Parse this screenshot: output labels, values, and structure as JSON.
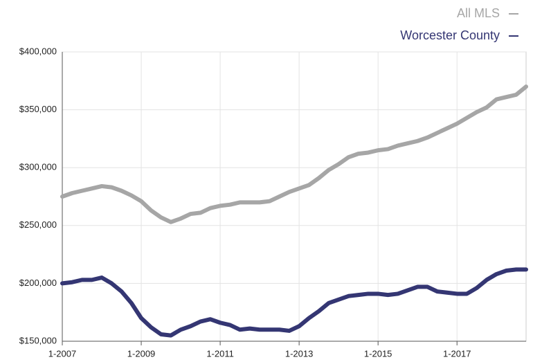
{
  "chart_data": {
    "type": "line",
    "x": [
      2007,
      2007.25,
      2007.5,
      2007.75,
      2008,
      2008.25,
      2008.5,
      2008.75,
      2009,
      2009.25,
      2009.5,
      2009.75,
      2010,
      2010.25,
      2010.5,
      2010.75,
      2011,
      2011.25,
      2011.5,
      2011.75,
      2012,
      2012.25,
      2012.5,
      2012.75,
      2013,
      2013.25,
      2013.5,
      2013.75,
      2014,
      2014.25,
      2014.5,
      2014.75,
      2015,
      2015.25,
      2015.5,
      2015.75,
      2016,
      2016.25,
      2016.5,
      2016.75,
      2017,
      2017.25,
      2017.5,
      2017.75,
      2018,
      2018.25,
      2018.5,
      2018.75
    ],
    "series": [
      {
        "name": "All MLS",
        "color": "#a6a6a6",
        "values": [
          275000,
          278000,
          280000,
          282000,
          284000,
          283000,
          280000,
          276000,
          271000,
          263000,
          257000,
          253000,
          256000,
          260000,
          261000,
          265000,
          267000,
          268000,
          270000,
          270000,
          270000,
          271000,
          275000,
          279000,
          282000,
          285000,
          291000,
          298000,
          303000,
          309000,
          312000,
          313000,
          315000,
          316000,
          319000,
          321000,
          323000,
          326000,
          330000,
          334000,
          338000,
          343000,
          348000,
          352000,
          359000,
          361000,
          363000,
          370000
        ]
      },
      {
        "name": "Worcester County",
        "color": "#343673",
        "values": [
          200000,
          201000,
          203000,
          203000,
          205000,
          200000,
          193000,
          183000,
          170000,
          162000,
          156000,
          155000,
          160000,
          163000,
          167000,
          169000,
          166000,
          164000,
          160000,
          161000,
          160000,
          160000,
          160000,
          159000,
          163000,
          170000,
          176000,
          183000,
          186000,
          189000,
          190000,
          191000,
          191000,
          190000,
          191000,
          194000,
          197000,
          197000,
          193000,
          192000,
          191000,
          191000,
          196000,
          203000,
          208000,
          211000,
          212000,
          212000
        ]
      }
    ],
    "xlim": [
      2007,
      2018.75
    ],
    "xticks": [
      {
        "value": 2007,
        "label": "1-2007"
      },
      {
        "value": 2009,
        "label": "1-2009"
      },
      {
        "value": 2011,
        "label": "1-2011"
      },
      {
        "value": 2013,
        "label": "1-2013"
      },
      {
        "value": 2015,
        "label": "1-2015"
      },
      {
        "value": 2017,
        "label": "1-2017"
      }
    ],
    "ylim": [
      150000,
      400000
    ],
    "yticks": [
      {
        "value": 150000,
        "label": "$150,000"
      },
      {
        "value": 200000,
        "label": "$200,000"
      },
      {
        "value": 250000,
        "label": "$250,000"
      },
      {
        "value": 300000,
        "label": "$300,000"
      },
      {
        "value": 350000,
        "label": "$350,000"
      },
      {
        "value": 400000,
        "label": "$400,000"
      }
    ],
    "grid": true
  }
}
